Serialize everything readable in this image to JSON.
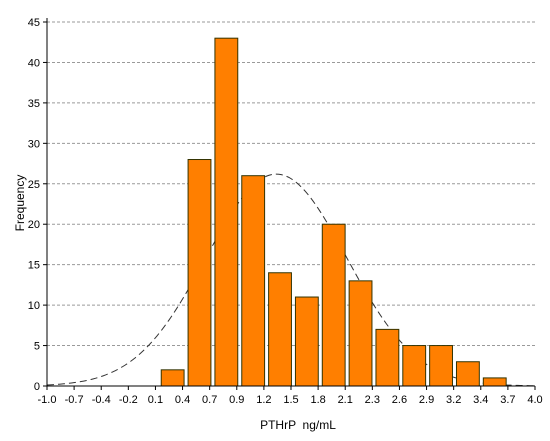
{
  "chart_data": {
    "type": "bar",
    "title": "",
    "xlabel": "PTHrP  ng/mL",
    "ylabel": "Frequency",
    "xlim": [
      -1.0,
      4.0
    ],
    "ylim": [
      0,
      45
    ],
    "x_ticks": [
      "-1.0",
      "-0.7",
      "-0.4",
      "-0.2",
      "0.1",
      "0.4",
      "0.7",
      "0.9",
      "1.2",
      "1.5",
      "1.8",
      "2.1",
      "2.3",
      "2.6",
      "2.9",
      "3.2",
      "3.4",
      "3.7",
      "4.0"
    ],
    "y_ticks": [
      "0",
      "5",
      "10",
      "15",
      "20",
      "25",
      "30",
      "35",
      "40",
      "45"
    ],
    "grid": "horizontal-dashed",
    "bar_color": "#ff7f00",
    "bar_edge_color": "#333300",
    "bin_width": 0.275,
    "bins": [
      {
        "x_start": 0.15,
        "value": 2
      },
      {
        "x_start": 0.425,
        "value": 28
      },
      {
        "x_start": 0.7,
        "value": 43
      },
      {
        "x_start": 0.975,
        "value": 26
      },
      {
        "x_start": 1.25,
        "value": 14
      },
      {
        "x_start": 1.525,
        "value": 11
      },
      {
        "x_start": 1.8,
        "value": 20
      },
      {
        "x_start": 2.075,
        "value": 13
      },
      {
        "x_start": 2.35,
        "value": 7
      },
      {
        "x_start": 2.625,
        "value": 5
      },
      {
        "x_start": 2.9,
        "value": 5
      },
      {
        "x_start": 3.175,
        "value": 3
      },
      {
        "x_start": 3.45,
        "value": 1
      }
    ],
    "normal_curve": {
      "mean": 1.35,
      "sd": 0.72,
      "peak": 26.2,
      "style": "dashed"
    }
  }
}
